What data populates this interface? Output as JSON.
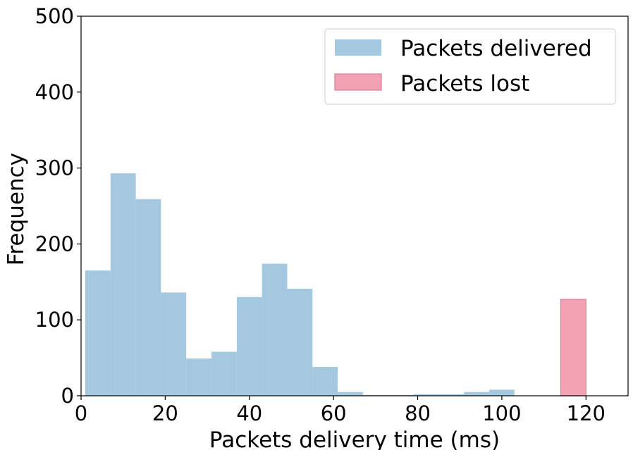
{
  "chart_data": {
    "type": "bar",
    "title": "",
    "xlabel": "Packets delivery time (ms)",
    "ylabel": "Frequency",
    "xlim": [
      0,
      130
    ],
    "ylim": [
      0,
      500
    ],
    "xticks": [
      0,
      20,
      40,
      60,
      80,
      100,
      120
    ],
    "yticks": [
      0,
      100,
      200,
      300,
      400,
      500
    ],
    "grid": false,
    "legend_position": "top-right",
    "series": [
      {
        "name": "Packets delivered",
        "color": "#a5c8e1",
        "bin_edges": [
          1,
          7,
          13,
          19,
          25,
          31,
          37,
          43,
          49,
          55,
          61,
          67,
          73,
          79,
          85,
          91,
          97,
          103
        ],
        "values": [
          165,
          293,
          259,
          136,
          49,
          58,
          130,
          174,
          141,
          38,
          5,
          1,
          1,
          2,
          2,
          5,
          8
        ]
      },
      {
        "name": "Packets lost",
        "color": "#f3a2b4",
        "edge_color": "#e17b91",
        "bin_edges": [
          114,
          120
        ],
        "values": [
          127
        ]
      }
    ]
  }
}
